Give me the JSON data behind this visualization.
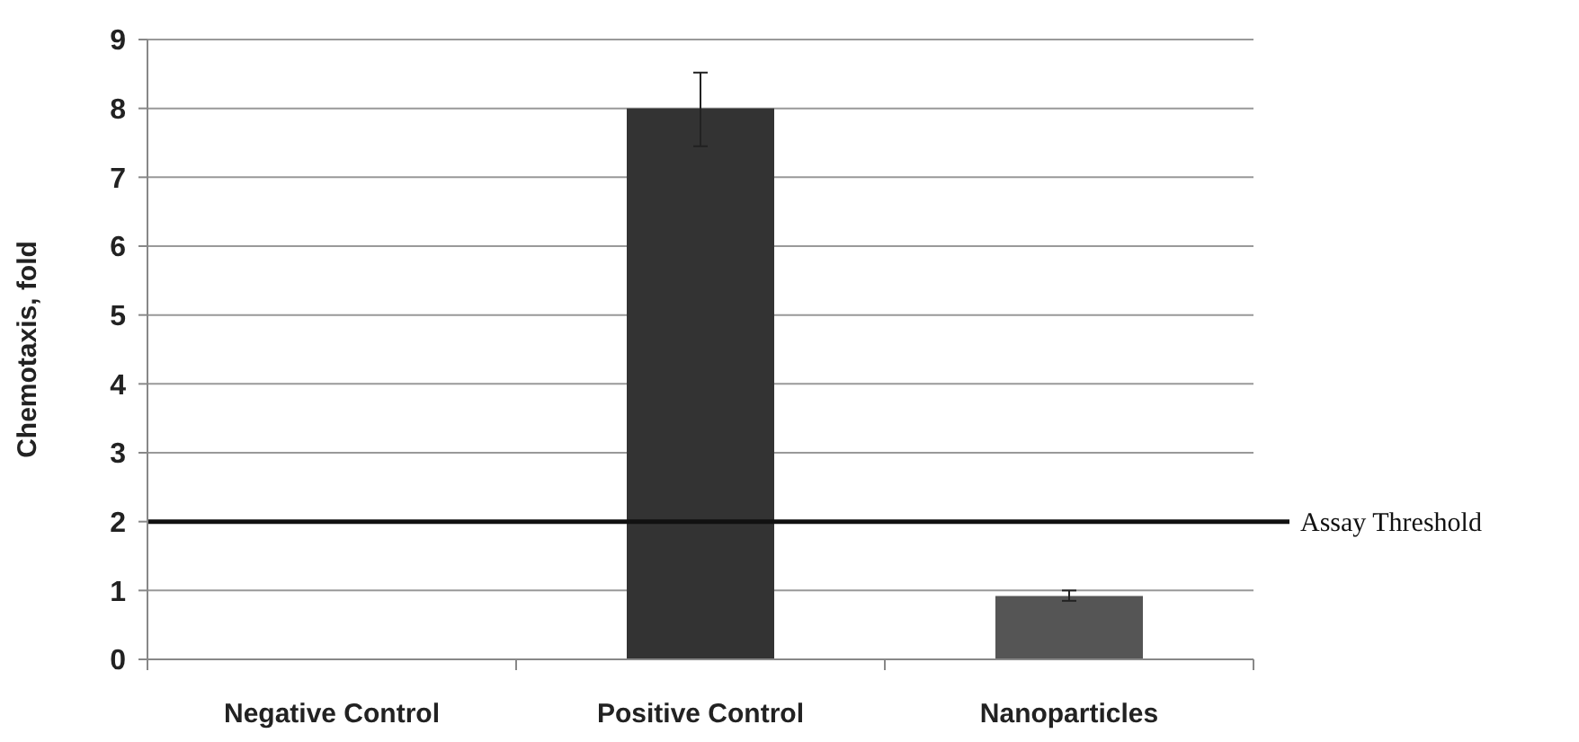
{
  "chart_data": {
    "type": "bar",
    "ylabel": "Chemotaxis, fold",
    "categories": [
      "Negative Control",
      "Positive Control",
      "Nanoparticles"
    ],
    "values": [
      0,
      8,
      0.92
    ],
    "colors": [
      "#333333",
      "#333333",
      "#555555"
    ],
    "errors": [
      null,
      [
        7.45,
        8.52
      ],
      [
        0.85,
        1.0
      ]
    ],
    "ylim": [
      0,
      9
    ],
    "yticks": [
      0,
      1,
      2,
      3,
      4,
      5,
      6,
      7,
      8,
      9
    ],
    "grid": "y",
    "ref_lines": [
      {
        "axis": "y",
        "value": 2,
        "label": "Assay Threshold",
        "color": "#111111"
      }
    ]
  }
}
